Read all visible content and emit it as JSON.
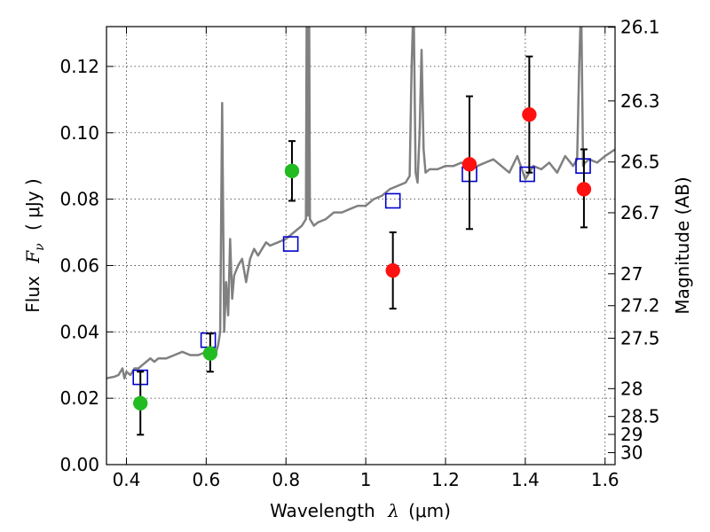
{
  "chart_data": {
    "type": "scatter",
    "xlabel": {
      "prefix": "Wavelength",
      "symbol": "λ",
      "unit": "(μm)"
    },
    "ylabel": {
      "prefix": "Flux",
      "symbol": "F",
      "subscript": "ν",
      "unit": "( μJy )"
    },
    "y2label": "Magnitude (AB)",
    "xlim": [
      0.35,
      1.625
    ],
    "ylim": [
      0.0,
      0.132
    ],
    "grid": true,
    "x_ticks": [
      0.4,
      0.6,
      0.8,
      1.0,
      1.2,
      1.4,
      1.6
    ],
    "x_tick_labels": [
      "0.4",
      "0.6",
      "0.8",
      "1",
      "1.2",
      "1.4",
      "1.6"
    ],
    "y_ticks": [
      0.0,
      0.02,
      0.04,
      0.06,
      0.08,
      0.1,
      0.12
    ],
    "y_tick_labels": [
      "0.00",
      "0.02",
      "0.04",
      "0.06",
      "0.08",
      "0.10",
      "0.12"
    ],
    "y2_ticks": [
      {
        "flux": 0.1318,
        "label": "26.1"
      },
      {
        "flux": 0.1096,
        "label": "26.3"
      },
      {
        "flux": 0.0912,
        "label": "26.5"
      },
      {
        "flux": 0.0759,
        "label": "26.7"
      },
      {
        "flux": 0.0575,
        "label": "27"
      },
      {
        "flux": 0.0479,
        "label": "27.2"
      },
      {
        "flux": 0.0381,
        "label": "27.5"
      },
      {
        "flux": 0.0229,
        "label": "28"
      },
      {
        "flux": 0.0145,
        "label": "28.5"
      },
      {
        "flux": 0.0091,
        "label": "29"
      },
      {
        "flux": 0.0036,
        "label": "30"
      }
    ],
    "colors": {
      "model": "#808080",
      "green_points": "#22bb22",
      "red_points": "#ff1111",
      "squares": "#0000cc",
      "errorbars": "#000000"
    },
    "model_spectrum": {
      "x": [
        0.35,
        0.37,
        0.38,
        0.39,
        0.395,
        0.4,
        0.41,
        0.42,
        0.43,
        0.44,
        0.45,
        0.46,
        0.47,
        0.48,
        0.5,
        0.52,
        0.54,
        0.56,
        0.58,
        0.6,
        0.62,
        0.625,
        0.63,
        0.635,
        0.64,
        0.645,
        0.65,
        0.655,
        0.66,
        0.665,
        0.67,
        0.68,
        0.69,
        0.7,
        0.71,
        0.72,
        0.73,
        0.74,
        0.75,
        0.76,
        0.78,
        0.8,
        0.82,
        0.84,
        0.85,
        0.852,
        0.855,
        0.858,
        0.86,
        0.865,
        0.87,
        0.88,
        0.9,
        0.92,
        0.94,
        0.96,
        0.98,
        1.0,
        1.02,
        1.04,
        1.06,
        1.08,
        1.1,
        1.11,
        1.115,
        1.12,
        1.125,
        1.13,
        1.135,
        1.14,
        1.145,
        1.15,
        1.16,
        1.18,
        1.2,
        1.22,
        1.24,
        1.26,
        1.28,
        1.3,
        1.32,
        1.34,
        1.36,
        1.38,
        1.4,
        1.42,
        1.44,
        1.46,
        1.48,
        1.5,
        1.52,
        1.53,
        1.535,
        1.54,
        1.545,
        1.55,
        1.56,
        1.58,
        1.6,
        1.625
      ],
      "y": [
        0.026,
        0.0265,
        0.027,
        0.029,
        0.026,
        0.028,
        0.027,
        0.029,
        0.029,
        0.03,
        0.031,
        0.032,
        0.031,
        0.032,
        0.032,
        0.033,
        0.034,
        0.033,
        0.033,
        0.034,
        0.035,
        0.034,
        0.036,
        0.04,
        0.109,
        0.04,
        0.055,
        0.045,
        0.068,
        0.05,
        0.057,
        0.06,
        0.062,
        0.055,
        0.062,
        0.065,
        0.063,
        0.065,
        0.067,
        0.066,
        0.067,
        0.068,
        0.07,
        0.072,
        0.074,
        0.14,
        0.075,
        0.14,
        0.074,
        0.073,
        0.072,
        0.073,
        0.074,
        0.076,
        0.076,
        0.077,
        0.078,
        0.078,
        0.08,
        0.081,
        0.083,
        0.084,
        0.085,
        0.087,
        0.12,
        0.14,
        0.088,
        0.085,
        0.1,
        0.125,
        0.095,
        0.088,
        0.089,
        0.089,
        0.09,
        0.09,
        0.091,
        0.089,
        0.09,
        0.091,
        0.092,
        0.09,
        0.088,
        0.093,
        0.086,
        0.09,
        0.089,
        0.091,
        0.088,
        0.093,
        0.09,
        0.092,
        0.12,
        0.14,
        0.09,
        0.091,
        0.092,
        0.091,
        0.093,
        0.095
      ]
    },
    "green_points": {
      "x": [
        0.435,
        0.61,
        0.815
      ],
      "y": [
        0.0185,
        0.0335,
        0.0885
      ],
      "err_low": [
        0.0095,
        0.0055,
        0.009
      ],
      "err_high": [
        0.0095,
        0.006,
        0.009
      ]
    },
    "red_points": {
      "x": [
        1.068,
        1.26,
        1.41,
        1.547
      ],
      "y": [
        0.0585,
        0.0905,
        0.1055,
        0.083
      ],
      "err_low": [
        0.0115,
        0.0195,
        0.0175,
        0.0115
      ],
      "err_high": [
        0.0115,
        0.0205,
        0.0175,
        0.012
      ]
    },
    "squares": {
      "x": [
        0.435,
        0.605,
        0.812,
        1.068,
        1.26,
        1.405,
        1.545
      ],
      "y": [
        0.0263,
        0.0375,
        0.0665,
        0.0795,
        0.0875,
        0.0875,
        0.09
      ]
    }
  }
}
